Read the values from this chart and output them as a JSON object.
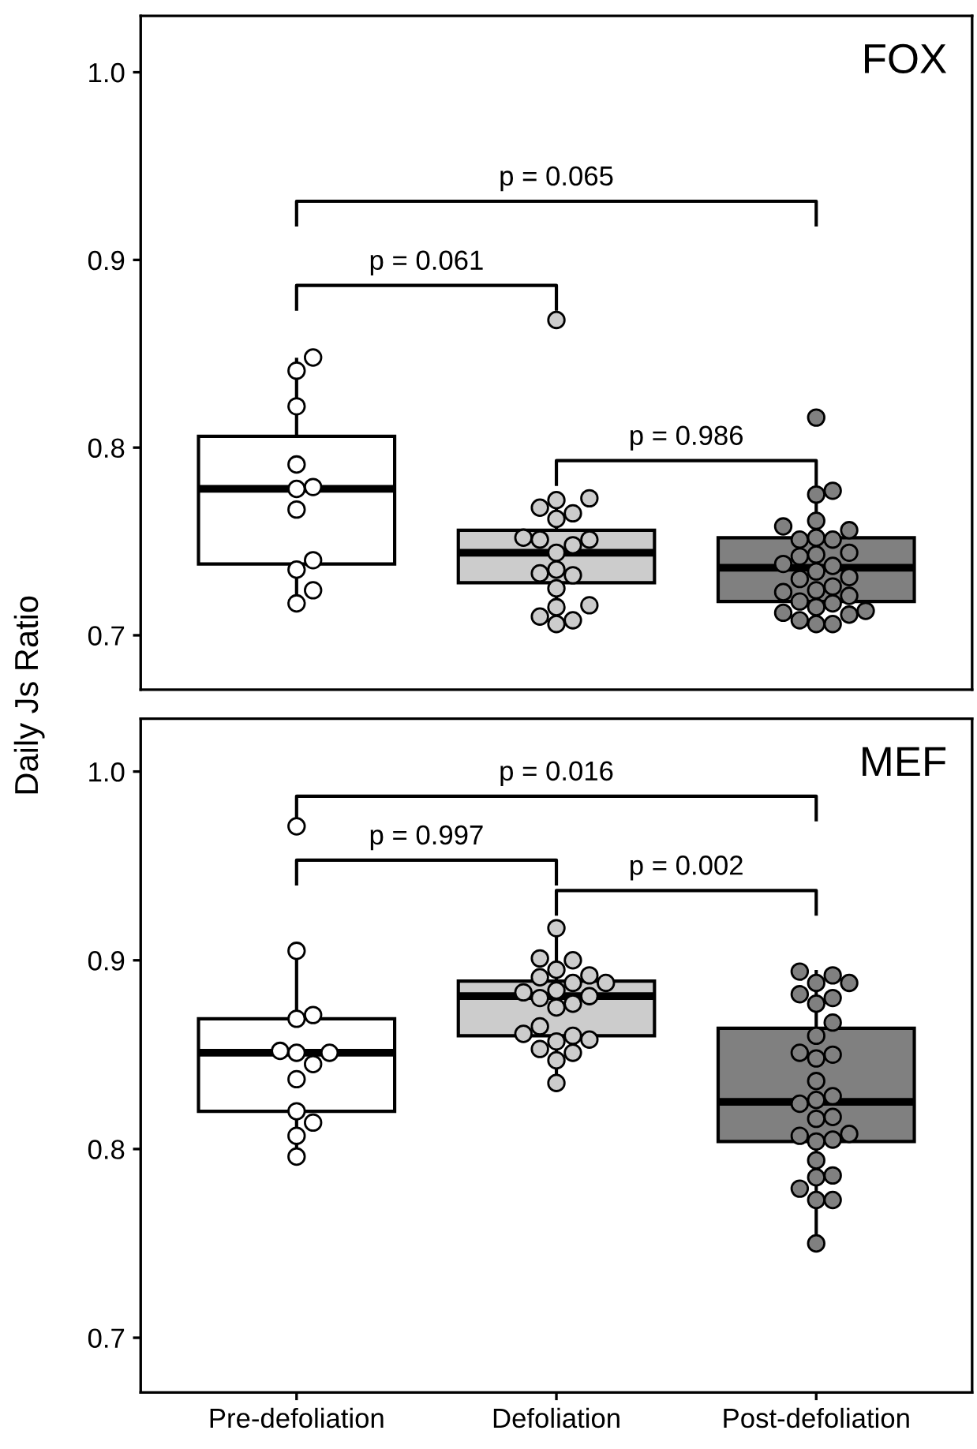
{
  "chart_data": [
    {
      "type": "box",
      "title": "FOX",
      "ylabel": "Daily Js Ratio",
      "categories": [
        "Pre-defoliation",
        "Defoliation",
        "Post-defoliation"
      ],
      "ylim": [
        0.671,
        1.03
      ],
      "yticks": [
        {
          "value": 0.7,
          "label": "0.7"
        },
        {
          "value": 0.8,
          "label": "0.8"
        },
        {
          "value": 0.9,
          "label": "0.9"
        },
        {
          "value": 1.0,
          "label": "1.0"
        }
      ],
      "tick_labels": "y",
      "grid": false,
      "legend": false,
      "colors": [
        "#ffffff",
        "#cccccc",
        "#808080"
      ],
      "boxes": [
        {
          "low": 0.718,
          "q1": 0.738,
          "median": 0.778,
          "q3": 0.806,
          "high": 0.847
        },
        {
          "low": 0.709,
          "q1": 0.728,
          "median": 0.744,
          "q3": 0.756,
          "high": 0.772
        },
        {
          "low": 0.706,
          "q1": 0.718,
          "median": 0.736,
          "q3": 0.752,
          "high": 0.777
        }
      ],
      "series": [
        {
          "type": "scatter",
          "color": "#ffffff",
          "x": [
            "Pre-defoliation",
            "Pre-defoliation",
            "Pre-defoliation",
            "Pre-defoliation",
            "Pre-defoliation",
            "Pre-defoliation",
            "Pre-defoliation",
            "Pre-defoliation",
            "Pre-defoliation",
            "Pre-defoliation",
            "Pre-defoliation"
          ],
          "values": [
            0.848,
            0.841,
            0.822,
            0.791,
            0.778,
            0.779,
            0.767,
            0.74,
            0.735,
            0.724,
            0.717
          ]
        },
        {
          "type": "scatter",
          "color": "#cccccc",
          "x": [
            "Defoliation",
            "Defoliation",
            "Defoliation",
            "Defoliation",
            "Defoliation",
            "Defoliation",
            "Defoliation",
            "Defoliation",
            "Defoliation",
            "Defoliation",
            "Defoliation",
            "Defoliation",
            "Defoliation",
            "Defoliation",
            "Defoliation",
            "Defoliation",
            "Defoliation",
            "Defoliation",
            "Defoliation",
            "Defoliation"
          ],
          "values": [
            0.868,
            0.772,
            0.773,
            0.768,
            0.765,
            0.762,
            0.752,
            0.751,
            0.751,
            0.748,
            0.744,
            0.735,
            0.733,
            0.732,
            0.725,
            0.716,
            0.715,
            0.71,
            0.708,
            0.706
          ]
        },
        {
          "type": "scatter",
          "color": "#808080",
          "x": [
            "Post-defoliation",
            "Post-defoliation",
            "Post-defoliation",
            "Post-defoliation",
            "Post-defoliation",
            "Post-defoliation",
            "Post-defoliation",
            "Post-defoliation",
            "Post-defoliation",
            "Post-defoliation",
            "Post-defoliation",
            "Post-defoliation",
            "Post-defoliation",
            "Post-defoliation",
            "Post-defoliation",
            "Post-defoliation",
            "Post-defoliation",
            "Post-defoliation",
            "Post-defoliation",
            "Post-defoliation",
            "Post-defoliation",
            "Post-defoliation",
            "Post-defoliation",
            "Post-defoliation",
            "Post-defoliation",
            "Post-defoliation",
            "Post-defoliation",
            "Post-defoliation",
            "Post-defoliation",
            "Post-defoliation"
          ],
          "values": [
            0.816,
            0.777,
            0.775,
            0.761,
            0.758,
            0.756,
            0.752,
            0.751,
            0.751,
            0.744,
            0.743,
            0.742,
            0.737,
            0.738,
            0.734,
            0.731,
            0.73,
            0.726,
            0.724,
            0.723,
            0.721,
            0.718,
            0.717,
            0.715,
            0.713,
            0.712,
            0.711,
            0.708,
            0.706,
            0.706
          ]
        }
      ],
      "marker": "circle",
      "annotations": [
        "p = 0.065",
        "p = 0.061",
        "p = 0.986"
      ]
    },
    {
      "type": "box",
      "title": "MEF",
      "categories": [
        "Pre-defoliation",
        "Defoliation",
        "Post-defoliation"
      ],
      "ylim": [
        0.671,
        1.028
      ],
      "yticks": [
        {
          "value": 0.7,
          "label": "0.7"
        },
        {
          "value": 0.8,
          "label": "0.8"
        },
        {
          "value": 0.9,
          "label": "0.9"
        },
        {
          "value": 1.0,
          "label": "1.0"
        }
      ],
      "grid": false,
      "legend": false,
      "colors": [
        "#ffffff",
        "#cccccc",
        "#808080"
      ],
      "boxes": [
        {
          "low": 0.797,
          "q1": 0.82,
          "median": 0.851,
          "q3": 0.869,
          "high": 0.904
        },
        {
          "low": 0.835,
          "q1": 0.86,
          "median": 0.881,
          "q3": 0.889,
          "high": 0.917
        },
        {
          "low": 0.75,
          "q1": 0.804,
          "median": 0.825,
          "q3": 0.864,
          "high": 0.894
        }
      ],
      "series": [
        {
          "type": "scatter",
          "color": "#ffffff",
          "x": [
            "Pre-defoliation",
            "Pre-defoliation",
            "Pre-defoliation",
            "Pre-defoliation",
            "Pre-defoliation",
            "Pre-defoliation",
            "Pre-defoliation",
            "Pre-defoliation",
            "Pre-defoliation",
            "Pre-defoliation",
            "Pre-defoliation",
            "Pre-defoliation",
            "Pre-defoliation"
          ],
          "values": [
            0.971,
            0.905,
            0.871,
            0.869,
            0.852,
            0.851,
            0.851,
            0.845,
            0.837,
            0.82,
            0.814,
            0.807,
            0.796
          ]
        },
        {
          "type": "scatter",
          "color": "#cccccc",
          "x": [
            "Defoliation",
            "Defoliation",
            "Defoliation",
            "Defoliation",
            "Defoliation",
            "Defoliation",
            "Defoliation",
            "Defoliation",
            "Defoliation",
            "Defoliation",
            "Defoliation",
            "Defoliation",
            "Defoliation",
            "Defoliation",
            "Defoliation",
            "Defoliation",
            "Defoliation",
            "Defoliation",
            "Defoliation",
            "Defoliation",
            "Defoliation",
            "Defoliation",
            "Defoliation"
          ],
          "values": [
            0.917,
            0.901,
            0.9,
            0.895,
            0.892,
            0.891,
            0.888,
            0.888,
            0.884,
            0.883,
            0.881,
            0.88,
            0.877,
            0.875,
            0.865,
            0.861,
            0.86,
            0.858,
            0.857,
            0.853,
            0.851,
            0.847,
            0.835
          ]
        },
        {
          "type": "scatter",
          "color": "#808080",
          "x": [
            "Post-defoliation",
            "Post-defoliation",
            "Post-defoliation",
            "Post-defoliation",
            "Post-defoliation",
            "Post-defoliation",
            "Post-defoliation",
            "Post-defoliation",
            "Post-defoliation",
            "Post-defoliation",
            "Post-defoliation",
            "Post-defoliation",
            "Post-defoliation",
            "Post-defoliation",
            "Post-defoliation",
            "Post-defoliation",
            "Post-defoliation",
            "Post-defoliation",
            "Post-defoliation",
            "Post-defoliation",
            "Post-defoliation",
            "Post-defoliation",
            "Post-defoliation",
            "Post-defoliation",
            "Post-defoliation",
            "Post-defoliation",
            "Post-defoliation",
            "Post-defoliation",
            "Post-defoliation"
          ],
          "values": [
            0.894,
            0.892,
            0.888,
            0.888,
            0.882,
            0.88,
            0.877,
            0.867,
            0.86,
            0.851,
            0.85,
            0.848,
            0.836,
            0.828,
            0.826,
            0.824,
            0.817,
            0.816,
            0.808,
            0.807,
            0.805,
            0.804,
            0.794,
            0.786,
            0.785,
            0.779,
            0.773,
            0.773,
            0.75
          ]
        }
      ],
      "marker": "circle",
      "annotations": [
        "p = 0.016",
        "p = 0.997",
        "p = 0.002"
      ]
    }
  ]
}
